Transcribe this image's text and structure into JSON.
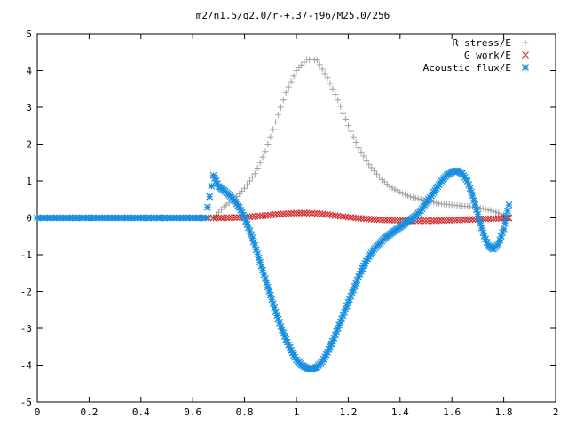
{
  "chart_data": {
    "type": "scatter",
    "title": "m2/n1.5/q2.0/r-+.37-j96/M25.0/256",
    "xlabel": "",
    "ylabel": "",
    "xlim": [
      0,
      2
    ],
    "ylim": [
      -5,
      5
    ],
    "x_ticks": [
      "0",
      "0.2",
      "0.4",
      "0.6",
      "0.8",
      "1",
      "1.2",
      "1.4",
      "1.6",
      "1.8",
      "2"
    ],
    "y_ticks": [
      "-5",
      "-4",
      "-3",
      "-2",
      "-1",
      "0",
      "1",
      "2",
      "3",
      "4",
      "5"
    ],
    "grid": false,
    "legend_position": "top-right",
    "series": [
      {
        "name": "R stress/E",
        "marker": "plus",
        "color": "#a0a0a0",
        "points": [
          [
            0.0,
            0.0
          ],
          [
            0.1,
            0.0
          ],
          [
            0.2,
            0.0
          ],
          [
            0.3,
            0.0
          ],
          [
            0.4,
            0.0
          ],
          [
            0.5,
            0.0
          ],
          [
            0.6,
            0.0
          ],
          [
            0.68,
            0.0
          ],
          [
            0.72,
            0.3
          ],
          [
            0.76,
            0.5
          ],
          [
            0.8,
            0.8
          ],
          [
            0.84,
            1.2
          ],
          [
            0.88,
            1.8
          ],
          [
            0.92,
            2.6
          ],
          [
            0.96,
            3.4
          ],
          [
            1.0,
            4.0
          ],
          [
            1.04,
            4.3
          ],
          [
            1.08,
            4.28
          ],
          [
            1.12,
            3.8
          ],
          [
            1.16,
            3.2
          ],
          [
            1.2,
            2.5
          ],
          [
            1.24,
            1.9
          ],
          [
            1.28,
            1.45
          ],
          [
            1.32,
            1.1
          ],
          [
            1.36,
            0.85
          ],
          [
            1.4,
            0.7
          ],
          [
            1.44,
            0.57
          ],
          [
            1.48,
            0.5
          ],
          [
            1.52,
            0.43
          ],
          [
            1.56,
            0.38
          ],
          [
            1.6,
            0.35
          ],
          [
            1.64,
            0.32
          ],
          [
            1.68,
            0.3
          ],
          [
            1.72,
            0.25
          ],
          [
            1.76,
            0.18
          ],
          [
            1.8,
            0.08
          ],
          [
            1.82,
            0.02
          ]
        ]
      },
      {
        "name": "G work/E",
        "marker": "cross",
        "color": "#d02020",
        "points": [
          [
            0.0,
            0.0
          ],
          [
            0.1,
            0.0
          ],
          [
            0.2,
            0.0
          ],
          [
            0.3,
            0.0
          ],
          [
            0.4,
            0.0
          ],
          [
            0.5,
            0.0
          ],
          [
            0.6,
            0.0
          ],
          [
            0.68,
            0.0
          ],
          [
            0.72,
            0.0
          ],
          [
            0.76,
            0.01
          ],
          [
            0.8,
            0.02
          ],
          [
            0.84,
            0.04
          ],
          [
            0.88,
            0.06
          ],
          [
            0.92,
            0.09
          ],
          [
            0.96,
            0.11
          ],
          [
            1.0,
            0.13
          ],
          [
            1.04,
            0.13
          ],
          [
            1.08,
            0.12
          ],
          [
            1.12,
            0.09
          ],
          [
            1.16,
            0.05
          ],
          [
            1.2,
            0.02
          ],
          [
            1.24,
            -0.01
          ],
          [
            1.28,
            -0.03
          ],
          [
            1.32,
            -0.05
          ],
          [
            1.36,
            -0.06
          ],
          [
            1.4,
            -0.07
          ],
          [
            1.44,
            -0.08
          ],
          [
            1.48,
            -0.08
          ],
          [
            1.52,
            -0.08
          ],
          [
            1.56,
            -0.07
          ],
          [
            1.6,
            -0.06
          ],
          [
            1.64,
            -0.05
          ],
          [
            1.68,
            -0.04
          ],
          [
            1.72,
            -0.03
          ],
          [
            1.76,
            -0.02
          ],
          [
            1.8,
            -0.01
          ],
          [
            1.82,
            0.0
          ]
        ]
      },
      {
        "name": "Acoustic flux/E",
        "marker": "star",
        "color": "#1a8fe0",
        "points": [
          [
            0.0,
            0.0
          ],
          [
            0.05,
            0.0
          ],
          [
            0.1,
            0.0
          ],
          [
            0.15,
            0.0
          ],
          [
            0.2,
            0.0
          ],
          [
            0.25,
            0.0
          ],
          [
            0.3,
            0.0
          ],
          [
            0.35,
            0.0
          ],
          [
            0.4,
            0.0
          ],
          [
            0.45,
            0.0
          ],
          [
            0.5,
            0.0
          ],
          [
            0.55,
            0.0
          ],
          [
            0.6,
            0.0
          ],
          [
            0.65,
            0.0
          ],
          [
            0.68,
            1.15
          ],
          [
            0.7,
            0.85
          ],
          [
            0.72,
            0.75
          ],
          [
            0.74,
            0.62
          ],
          [
            0.76,
            0.48
          ],
          [
            0.78,
            0.28
          ],
          [
            0.8,
            0.0
          ],
          [
            0.82,
            -0.35
          ],
          [
            0.84,
            -0.75
          ],
          [
            0.86,
            -1.2
          ],
          [
            0.88,
            -1.65
          ],
          [
            0.9,
            -2.1
          ],
          [
            0.92,
            -2.55
          ],
          [
            0.94,
            -2.95
          ],
          [
            0.96,
            -3.3
          ],
          [
            0.98,
            -3.6
          ],
          [
            1.0,
            -3.85
          ],
          [
            1.02,
            -4.0
          ],
          [
            1.04,
            -4.08
          ],
          [
            1.06,
            -4.1
          ],
          [
            1.08,
            -4.05
          ],
          [
            1.1,
            -3.9
          ],
          [
            1.12,
            -3.65
          ],
          [
            1.14,
            -3.35
          ],
          [
            1.16,
            -3.0
          ],
          [
            1.18,
            -2.65
          ],
          [
            1.2,
            -2.3
          ],
          [
            1.22,
            -1.95
          ],
          [
            1.24,
            -1.6
          ],
          [
            1.26,
            -1.3
          ],
          [
            1.28,
            -1.05
          ],
          [
            1.3,
            -0.85
          ],
          [
            1.32,
            -0.7
          ],
          [
            1.34,
            -0.55
          ],
          [
            1.36,
            -0.45
          ],
          [
            1.38,
            -0.35
          ],
          [
            1.4,
            -0.25
          ],
          [
            1.42,
            -0.15
          ],
          [
            1.44,
            -0.05
          ],
          [
            1.46,
            0.05
          ],
          [
            1.48,
            0.2
          ],
          [
            1.5,
            0.4
          ],
          [
            1.52,
            0.6
          ],
          [
            1.54,
            0.8
          ],
          [
            1.56,
            1.0
          ],
          [
            1.58,
            1.15
          ],
          [
            1.6,
            1.25
          ],
          [
            1.62,
            1.28
          ],
          [
            1.64,
            1.2
          ],
          [
            1.66,
            1.0
          ],
          [
            1.68,
            0.6
          ],
          [
            1.7,
            0.1
          ],
          [
            1.72,
            -0.4
          ],
          [
            1.74,
            -0.75
          ],
          [
            1.76,
            -0.85
          ],
          [
            1.78,
            -0.7
          ],
          [
            1.8,
            -0.3
          ],
          [
            1.82,
            0.35
          ]
        ]
      }
    ]
  }
}
